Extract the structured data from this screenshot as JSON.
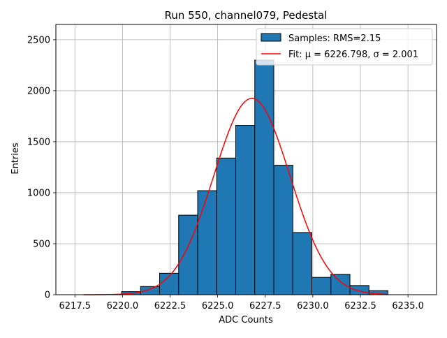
{
  "chart_data": {
    "type": "bar",
    "title": "Run 550, channel079, Pedestal",
    "xlabel": "ADC Counts",
    "ylabel": "Entries",
    "xlim": [
      6216.5,
      6236.5
    ],
    "ylim": [
      0,
      2650
    ],
    "xticks": [
      6217.5,
      6220.0,
      6222.5,
      6225.0,
      6227.5,
      6230.0,
      6232.5,
      6235.0
    ],
    "xtick_labels": [
      "6217.5",
      "6220.0",
      "6222.5",
      "6225.0",
      "6227.5",
      "6230.0",
      "6232.5",
      "6235.0"
    ],
    "yticks": [
      0,
      500,
      1000,
      1500,
      2000,
      2500
    ],
    "ytick_labels": [
      "0",
      "500",
      "1000",
      "1500",
      "2000",
      "2500"
    ],
    "grid": true,
    "legend_position": "top-right",
    "series": [
      {
        "name": "Samples: RMS=2.15",
        "kind": "histogram",
        "color": "#1f77b4",
        "edgecolor": "#000000",
        "bin_edges": [
          6217.95,
          6218.95,
          6219.95,
          6220.95,
          6221.95,
          6222.95,
          6223.95,
          6224.95,
          6225.95,
          6226.95,
          6227.95,
          6228.95,
          6229.95,
          6230.95,
          6231.95,
          6232.95,
          6233.95
        ],
        "values": [
          0,
          0,
          30,
          80,
          210,
          780,
          1020,
          1340,
          1660,
          2300,
          1270,
          610,
          170,
          200,
          90,
          40
        ]
      },
      {
        "name": "Fit: μ = 6226.798, σ = 2.001",
        "kind": "gaussian-fit",
        "color": "#ff0000",
        "mu": 6226.798,
        "sigma": 2.001,
        "amplitude": 1925,
        "x_range": [
          6217.95,
          6233.95
        ]
      }
    ]
  }
}
